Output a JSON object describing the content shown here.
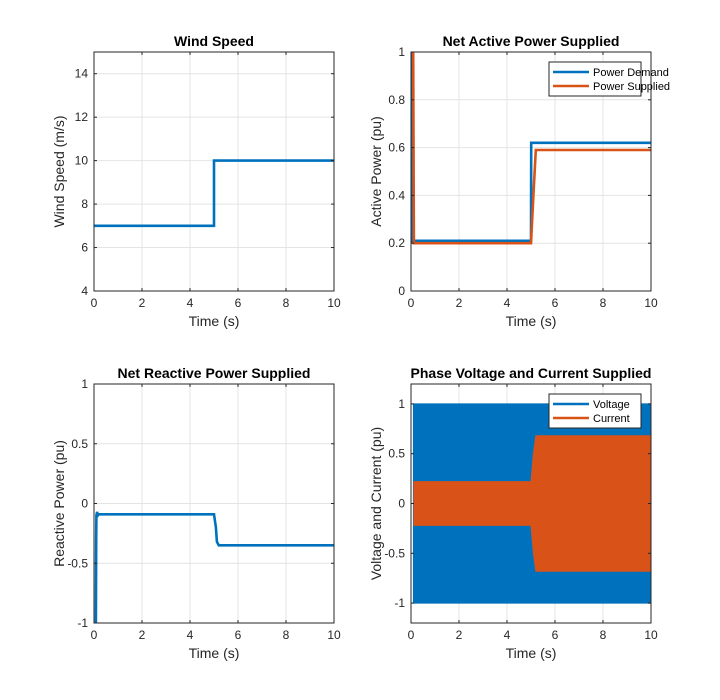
{
  "chart_data": [
    {
      "type": "line",
      "title": "Wind Speed",
      "xlabel": "Time (s)",
      "ylabel": "Wind Speed (m/s)",
      "xlim": [
        0,
        10
      ],
      "ylim": [
        4,
        15
      ],
      "xticks": [
        0,
        2,
        4,
        6,
        8,
        10
      ],
      "yticks": [
        4,
        6,
        8,
        10,
        12,
        14
      ],
      "grid": true,
      "series": [
        {
          "color": "#0072BD",
          "x": [
            0,
            5,
            5,
            10
          ],
          "y": [
            7,
            7,
            10,
            10
          ]
        }
      ]
    },
    {
      "type": "line",
      "title": "Net Active Power Supplied",
      "xlabel": "Time (s)",
      "ylabel": "Active Power (pu)",
      "xlim": [
        0,
        10
      ],
      "ylim": [
        0,
        1
      ],
      "xticks": [
        0,
        2,
        4,
        6,
        8,
        10
      ],
      "yticks": [
        0,
        0.2,
        0.4,
        0.6,
        0.8,
        1
      ],
      "grid": true,
      "legend": "top-right",
      "series": [
        {
          "name": "Power Demand",
          "color": "#0072BD",
          "x": [
            0.04,
            0.06,
            0.09,
            5,
            5.01,
            10
          ],
          "y": [
            0.2,
            1,
            0.21,
            0.21,
            0.62,
            0.62
          ]
        },
        {
          "name": "Power Supplied",
          "color": "#D95319",
          "x": [
            0.05,
            0.09,
            0.12,
            5,
            5.1,
            5.2,
            10
          ],
          "y": [
            1,
            1,
            0.2,
            0.2,
            0.4,
            0.59,
            0.59
          ]
        }
      ]
    },
    {
      "type": "line",
      "title": "Net Reactive Power Supplied",
      "xlabel": "Time (s)",
      "ylabel": "Reactive Power (pu)",
      "xlim": [
        0,
        10
      ],
      "ylim": [
        -1,
        1
      ],
      "xticks": [
        0,
        2,
        4,
        6,
        8,
        10
      ],
      "yticks": [
        -1,
        -0.5,
        0,
        0.5,
        1
      ],
      "grid": true,
      "series": [
        {
          "color": "#0072BD",
          "x": [
            0.08,
            0.09,
            0.1,
            0.13,
            0.16,
            0.2,
            5,
            5.08,
            5.12,
            5.2,
            10
          ],
          "y": [
            -1,
            -0.3,
            -0.1,
            -0.07,
            -0.1,
            -0.09,
            -0.09,
            -0.2,
            -0.32,
            -0.35,
            -0.35
          ]
        }
      ]
    },
    {
      "type": "area",
      "title": "Phase Voltage and Current Supplied",
      "xlabel": "Time (s)",
      "ylabel": "Voltage and Current (pu)",
      "xlim": [
        0,
        10
      ],
      "ylim": [
        -1.2,
        1.2
      ],
      "xticks": [
        0,
        2,
        4,
        6,
        8,
        10
      ],
      "yticks": [
        -1,
        -0.5,
        0,
        0.5,
        1
      ],
      "grid": true,
      "legend": "top-right",
      "series": [
        {
          "name": "Voltage",
          "color": "#0072BD",
          "x": [
            0.1,
            10
          ],
          "upper": [
            1,
            1
          ],
          "lower": [
            -1,
            -1
          ]
        },
        {
          "name": "Current",
          "color": "#D95319",
          "x": [
            0.12,
            5,
            5.1,
            5.2,
            10
          ],
          "upper": [
            0.22,
            0.22,
            0.5,
            0.68,
            0.68
          ],
          "lower": [
            -0.22,
            -0.22,
            -0.5,
            -0.68,
            -0.68
          ]
        }
      ]
    }
  ]
}
